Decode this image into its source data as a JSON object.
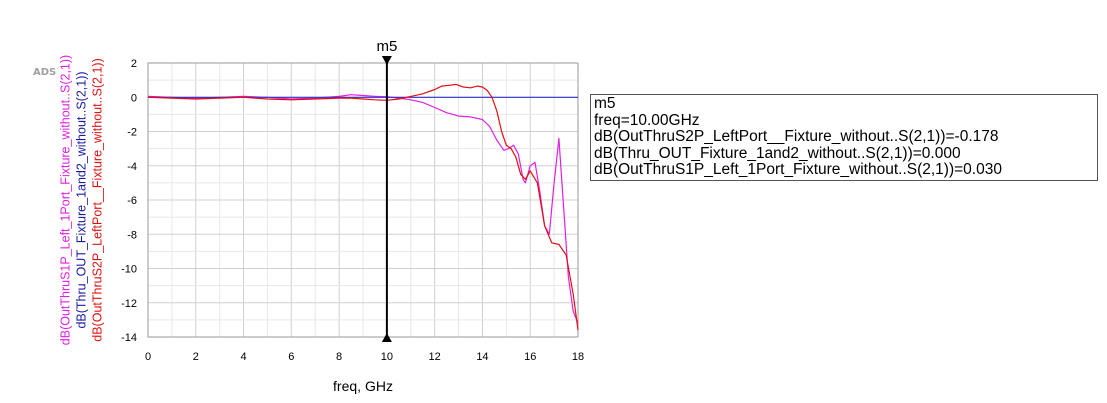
{
  "app": {
    "watermark": "ADS"
  },
  "chart_data": {
    "type": "line",
    "xlabel": "freq, GHz",
    "xlim": [
      0,
      18
    ],
    "ylim": [
      -14,
      2
    ],
    "xticks": [
      0,
      2,
      4,
      6,
      8,
      10,
      12,
      14,
      16,
      18
    ],
    "yticks": [
      2,
      0,
      -2,
      -4,
      -6,
      -8,
      -10,
      -12,
      -14
    ],
    "grid": true,
    "ylabels": [
      {
        "text": "dB(OutThruS1P_Left_1Port_Fixture_without..S(2,1))",
        "color": "#e020e0"
      },
      {
        "text": "dB(Thru_OUT_Fixture_1and2_without..S(2,1))",
        "color": "#1a1aa0"
      },
      {
        "text": "dB(OutThruS2P_LeftPort__Fixture_without..S(2,1))",
        "color": "#e01010"
      }
    ],
    "series": [
      {
        "name": "dB(OutThruS1P_Left_1Port_Fixture_without..S(2,1))",
        "color": "#e020e0",
        "x": [
          0,
          1,
          2,
          3,
          4,
          5,
          6,
          7,
          8,
          8.5,
          9,
          9.5,
          10,
          10.5,
          11,
          11.5,
          12,
          12.5,
          13,
          13.5,
          14,
          14.3,
          14.6,
          14.9,
          15.1,
          15.3,
          15.5,
          15.7,
          15.8,
          16,
          16.2,
          16.4,
          16.6,
          16.8,
          17,
          17.2,
          17.4,
          17.6,
          17.8,
          18
        ],
        "y": [
          0.05,
          0.0,
          -0.05,
          0.0,
          0.05,
          0.0,
          -0.1,
          -0.05,
          0.05,
          0.15,
          0.1,
          0.05,
          0.03,
          -0.05,
          -0.15,
          -0.3,
          -0.6,
          -0.9,
          -1.1,
          -1.15,
          -1.3,
          -1.7,
          -2.5,
          -3.1,
          -3.0,
          -2.8,
          -3.3,
          -4.8,
          -5.0,
          -4.0,
          -3.8,
          -5.5,
          -7.5,
          -8.0,
          -5.0,
          -2.4,
          -6.5,
          -10.5,
          -12.5,
          -13.2
        ]
      },
      {
        "name": "dB(Thru_OUT_Fixture_1and2_without..S(2,1))",
        "color": "#3030d0",
        "x": [
          0,
          18
        ],
        "y": [
          0,
          0
        ]
      },
      {
        "name": "dB(OutThruS2P_LeftPort__Fixture_without..S(2,1))",
        "color": "#e01010",
        "x": [
          0,
          1,
          2,
          3,
          4,
          5,
          6,
          7,
          8,
          8.5,
          9,
          9.5,
          10,
          10.5,
          11,
          11.5,
          12,
          12.3,
          12.6,
          12.9,
          13.2,
          13.5,
          13.8,
          14,
          14.2,
          14.4,
          14.6,
          14.8,
          15,
          15.2,
          15.4,
          15.6,
          15.8,
          16,
          16.3,
          16.6,
          16.9,
          17.2,
          17.5,
          17.8,
          18
        ],
        "y": [
          0.0,
          -0.05,
          -0.1,
          -0.05,
          0.0,
          -0.1,
          -0.15,
          -0.1,
          -0.05,
          -0.05,
          -0.1,
          -0.15,
          -0.18,
          -0.1,
          0.05,
          0.2,
          0.45,
          0.65,
          0.7,
          0.75,
          0.6,
          0.55,
          0.65,
          0.6,
          0.4,
          0.0,
          -0.8,
          -2.0,
          -2.8,
          -3.0,
          -3.5,
          -4.5,
          -4.8,
          -4.3,
          -5.0,
          -7.5,
          -8.5,
          -8.6,
          -9.2,
          -11.5,
          -13.6
        ]
      }
    ],
    "marker": {
      "name": "m5",
      "x": 10
    }
  },
  "readout": {
    "lines": [
      "m5",
      "freq=10.00GHz",
      "dB(OutThruS2P_LeftPort__Fixture_without..S(2,1))=-0.178",
      "dB(Thru_OUT_Fixture_1and2_without..S(2,1))=0.000",
      "dB(OutThruS1P_Left_1Port_Fixture_without..S(2,1))=0.030"
    ]
  }
}
